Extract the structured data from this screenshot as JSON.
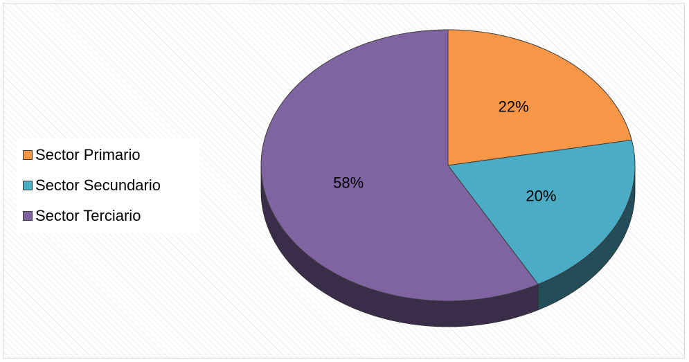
{
  "chart_data": {
    "type": "pie",
    "style": "3d",
    "categories": [
      "Sector Primario",
      "Sector Secundario",
      "Sector Terciario"
    ],
    "values": [
      22,
      20,
      58
    ],
    "data_labels": [
      "22%",
      "20%",
      "58%"
    ],
    "colors": [
      "#f79646",
      "#4bacc6",
      "#8064a2"
    ],
    "legend_position": "left",
    "title": "",
    "grid": false
  }
}
